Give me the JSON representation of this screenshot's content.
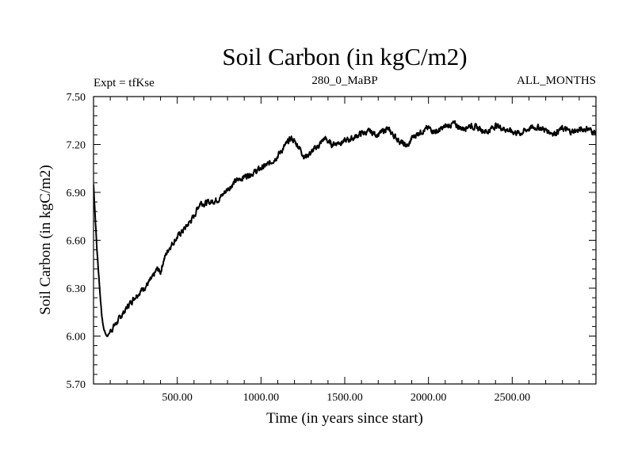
{
  "chart_data": {
    "type": "line",
    "title": "Soil Carbon (in kgC/m2)",
    "left_label": "Expt = tfKse",
    "center_label": "280_0_MaBP",
    "right_label": "ALL_MONTHS",
    "xlabel": "Time (in years since start)",
    "ylabel": "Soil Carbon (in kgC/m2)",
    "xlim": [
      0,
      3000
    ],
    "ylim": [
      5.7,
      7.5
    ],
    "x_ticks": [
      500,
      1000,
      1500,
      2000,
      2500
    ],
    "x_tick_labels": [
      "500.00",
      "1000.00",
      "1500.00",
      "2000.00",
      "2500.00"
    ],
    "y_ticks": [
      5.7,
      6.0,
      6.3,
      6.6,
      6.9,
      7.2,
      7.5
    ],
    "y_tick_labels": [
      "5.70",
      "6.00",
      "6.30",
      "6.60",
      "6.90",
      "7.20",
      "7.50"
    ],
    "series": [
      {
        "name": "Soil Carbon",
        "color": "#000000",
        "x": [
          0,
          10,
          20,
          30,
          40,
          50,
          60,
          70,
          80,
          90,
          100,
          120,
          150,
          200,
          250,
          300,
          350,
          380,
          400,
          420,
          450,
          500,
          550,
          600,
          620,
          640,
          660,
          700,
          750,
          800,
          850,
          900,
          950,
          1000,
          1050,
          1100,
          1150,
          1180,
          1200,
          1230,
          1260,
          1300,
          1350,
          1380,
          1420,
          1450,
          1500,
          1550,
          1600,
          1650,
          1700,
          1750,
          1800,
          1850,
          1880,
          1900,
          1950,
          2000,
          2050,
          2100,
          2150,
          2200,
          2250,
          2300,
          2350,
          2400,
          2450,
          2500,
          2550,
          2600,
          2650,
          2700,
          2750,
          2800,
          2850,
          2900,
          2950,
          3000
        ],
        "y": [
          6.95,
          6.75,
          6.55,
          6.4,
          6.25,
          6.12,
          6.05,
          6.02,
          6.0,
          6.01,
          6.03,
          6.06,
          6.1,
          6.18,
          6.25,
          6.3,
          6.36,
          6.42,
          6.4,
          6.48,
          6.55,
          6.62,
          6.68,
          6.75,
          6.8,
          6.84,
          6.83,
          6.84,
          6.86,
          6.92,
          6.97,
          7.0,
          7.02,
          7.05,
          7.08,
          7.13,
          7.2,
          7.24,
          7.22,
          7.18,
          7.12,
          7.15,
          7.2,
          7.24,
          7.2,
          7.21,
          7.22,
          7.24,
          7.27,
          7.28,
          7.26,
          7.3,
          7.25,
          7.2,
          7.19,
          7.24,
          7.28,
          7.3,
          7.28,
          7.31,
          7.33,
          7.3,
          7.32,
          7.3,
          7.28,
          7.32,
          7.3,
          7.28,
          7.27,
          7.3,
          7.31,
          7.29,
          7.27,
          7.3,
          7.28,
          7.29,
          7.3,
          7.27
        ]
      }
    ]
  }
}
